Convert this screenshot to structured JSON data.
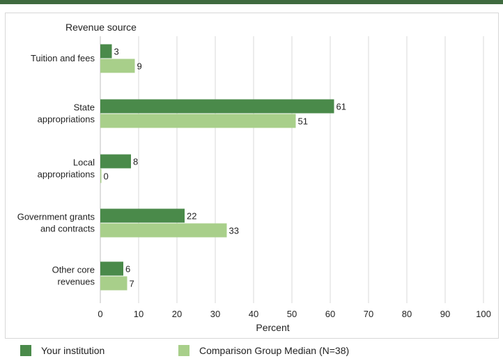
{
  "chart_data": {
    "type": "bar",
    "orientation": "horizontal",
    "title": "Revenue source",
    "xlabel": "Percent",
    "xlim": [
      0,
      100
    ],
    "xticks": [
      0,
      10,
      20,
      30,
      40,
      50,
      60,
      70,
      80,
      90,
      100
    ],
    "grid": true,
    "categories": [
      [
        "Tuition and fees"
      ],
      [
        "State",
        "appropriations"
      ],
      [
        "Local",
        "appropriations"
      ],
      [
        "Government grants",
        "and contracts"
      ],
      [
        "Other core",
        "revenues"
      ]
    ],
    "series": [
      {
        "name": "Your institution",
        "color": "#4a8a4a",
        "values": [
          3,
          61,
          8,
          22,
          6
        ]
      },
      {
        "name": "Comparison Group Median (N=38)",
        "color": "#a8cf8a",
        "values": [
          9,
          51,
          0,
          33,
          7
        ]
      }
    ],
    "legend_position": "bottom"
  }
}
